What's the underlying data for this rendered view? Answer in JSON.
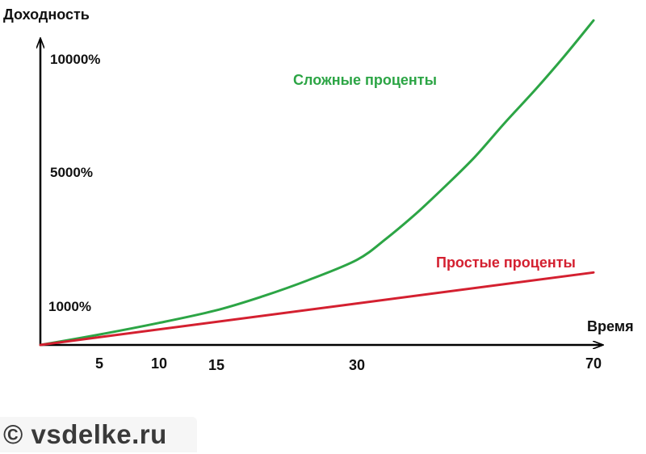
{
  "chart_data": {
    "type": "line",
    "xlabel": "Время",
    "ylabel": "Доходность",
    "xlim": [
      0,
      72
    ],
    "ylim": [
      0,
      10500
    ],
    "x_tick_labels": [
      "5",
      "10",
      "15",
      "30",
      "70"
    ],
    "x_ticks": [
      5,
      10,
      15,
      30,
      70
    ],
    "y_tick_labels": [
      "10000%",
      "5000%",
      "1000%"
    ],
    "y_ticks": [
      10000,
      5000,
      1000
    ],
    "series": [
      {
        "name": "Сложные проценты",
        "color": "#2ca545",
        "x": [
          0,
          5,
          10,
          15,
          20,
          25,
          30,
          35,
          40,
          45,
          50,
          55,
          60,
          65,
          70
        ],
        "y": [
          0,
          330,
          700,
          1100,
          1550,
          2080,
          2700,
          3380,
          4170,
          5050,
          5980,
          7050,
          8070,
          9150,
          10300
        ]
      },
      {
        "name": "Простые проценты",
        "color": "#d42030",
        "x": [
          0,
          70
        ],
        "y": [
          0,
          2300
        ]
      }
    ],
    "grid": false,
    "legend": "inline labels"
  },
  "watermark": "© vsdelke.ru"
}
